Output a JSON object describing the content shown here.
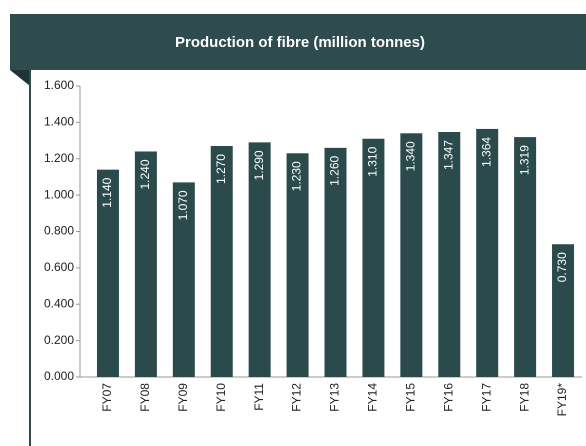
{
  "chart_data": {
    "type": "bar",
    "title": "Production of fibre (million tonnes)",
    "categories": [
      "FY07",
      "FY08",
      "FY09",
      "FY10",
      "FY11",
      "FY12",
      "FY13",
      "FY14",
      "FY15",
      "FY16",
      "FY17",
      "FY18",
      "FY19*"
    ],
    "values": [
      1.14,
      1.24,
      1.07,
      1.27,
      1.29,
      1.23,
      1.26,
      1.31,
      1.34,
      1.347,
      1.364,
      1.319,
      0.73
    ],
    "value_labels": [
      "1.140",
      "1.240",
      "1.070",
      "1.270",
      "1.290",
      "1.230",
      "1.260",
      "1.310",
      "1.340",
      "1.347",
      "1.364",
      "1.319",
      "0.730"
    ],
    "color": "#2b4a4c",
    "ylim": [
      0,
      1.6
    ],
    "yticks": [
      {
        "value": 0,
        "label": "0.000"
      },
      {
        "value": 0.2,
        "label": "0.200"
      },
      {
        "value": 0.4,
        "label": "0.400"
      },
      {
        "value": 0.6,
        "label": "0.600"
      },
      {
        "value": 0.8,
        "label": "0.800"
      },
      {
        "value": 1.0,
        "label": "1.000"
      },
      {
        "value": 1.2,
        "label": "1.200"
      },
      {
        "value": 1.4,
        "label": "1.400"
      },
      {
        "value": 1.6,
        "label": "1.600"
      }
    ],
    "grid": false
  }
}
